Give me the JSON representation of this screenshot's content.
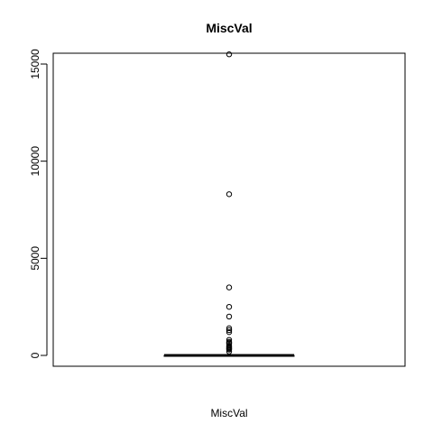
{
  "chart_data": {
    "type": "boxplot",
    "title": "MiscVal",
    "xlabel": "MiscVal",
    "ylabel": "",
    "ylim": [
      -500,
      16000
    ],
    "yticks": [
      0,
      5000,
      10000,
      15000
    ],
    "ytick_labels": [
      "0",
      "5000",
      "10000",
      "15000"
    ],
    "grid": false,
    "box": {
      "min": 0,
      "q1": 0,
      "median": 0,
      "q3": 0,
      "max": 0
    },
    "outliers": [
      15500,
      8300,
      3500,
      2500,
      2000,
      1400,
      1300,
      1200,
      800,
      700,
      650,
      600,
      500,
      450,
      400,
      350,
      300,
      200
    ],
    "colors": {
      "foreground": "#000000",
      "background": "#ffffff"
    }
  }
}
